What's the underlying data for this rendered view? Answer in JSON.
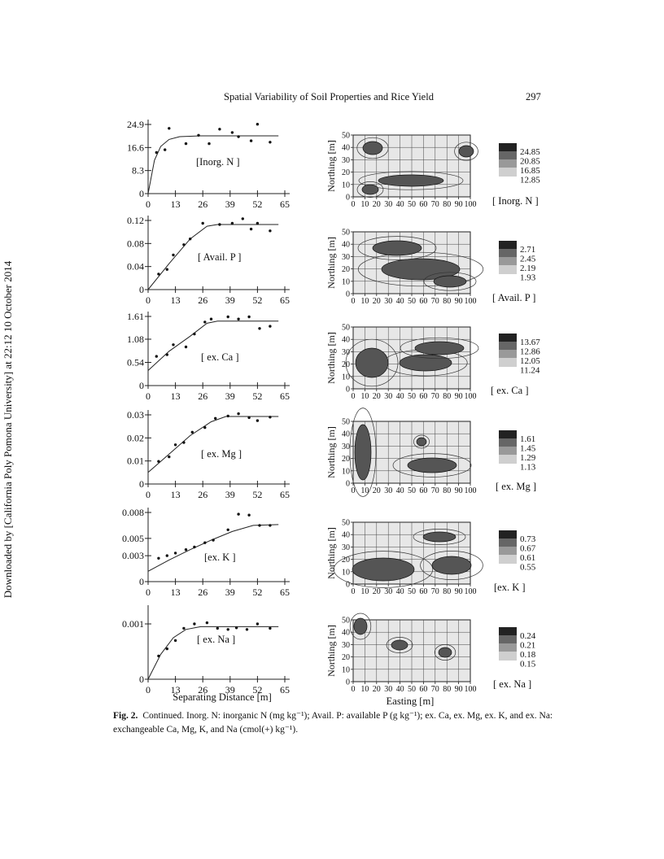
{
  "header": {
    "running_title": "Spatial Variability of Soil Properties and Rice Yield",
    "page_number": "297"
  },
  "sidebar_note": "Downloaded by [California Poly Pomona University] at 22:12 10 October 2014",
  "chart_data": [
    {
      "type": "scatter",
      "panel": "variogram",
      "label": "[Inorg. N ]",
      "xlim": [
        0,
        65
      ],
      "x_ticks": [
        "0",
        "13",
        "26",
        "39",
        "52",
        "65"
      ],
      "y_ticks": [
        "0",
        "8.3",
        "16.6",
        "24.9"
      ],
      "ylim": [
        0,
        24.9
      ],
      "points": [
        [
          4,
          14.8
        ],
        [
          8,
          15.8
        ],
        [
          10,
          23.5
        ],
        [
          18,
          18
        ],
        [
          24,
          21
        ],
        [
          29,
          18
        ],
        [
          34,
          23.2
        ],
        [
          40,
          22
        ],
        [
          43,
          20.5
        ],
        [
          49,
          19
        ],
        [
          52,
          25
        ],
        [
          58,
          18.5
        ]
      ],
      "fit": [
        [
          0,
          0
        ],
        [
          3,
          12
        ],
        [
          6,
          17
        ],
        [
          10,
          19.5
        ],
        [
          15,
          20.5
        ],
        [
          25,
          20.8
        ],
        [
          45,
          20.8
        ],
        [
          62,
          20.8
        ]
      ]
    },
    {
      "type": "scatter",
      "panel": "variogram",
      "label": "[ Avail. P ]",
      "xlim": [
        0,
        65
      ],
      "x_ticks": [
        "0",
        "13",
        "26",
        "39",
        "52",
        "65"
      ],
      "y_ticks": [
        "0",
        "0.04",
        "0.08",
        "0.12"
      ],
      "ylim": [
        0,
        0.12
      ],
      "points": [
        [
          5,
          0.027
        ],
        [
          9,
          0.035
        ],
        [
          12,
          0.06
        ],
        [
          17,
          0.078
        ],
        [
          20,
          0.088
        ],
        [
          26,
          0.115
        ],
        [
          34,
          0.113
        ],
        [
          40,
          0.115
        ],
        [
          45,
          0.123
        ],
        [
          49,
          0.105
        ],
        [
          52,
          0.115
        ],
        [
          58,
          0.102
        ]
      ],
      "fit": [
        [
          0,
          0
        ],
        [
          10,
          0.045
        ],
        [
          20,
          0.088
        ],
        [
          28,
          0.11
        ],
        [
          33,
          0.113
        ],
        [
          62,
          0.113
        ]
      ]
    },
    {
      "type": "scatter",
      "panel": "variogram",
      "label": "[ ex. Ca ]",
      "xlim": [
        0,
        65
      ],
      "x_ticks": [
        "0",
        "13",
        "26",
        "39",
        "52",
        "65"
      ],
      "y_ticks": [
        "0",
        "0.54",
        "1.08",
        "1.61"
      ],
      "ylim": [
        0,
        1.61
      ],
      "points": [
        [
          4,
          0.68
        ],
        [
          9,
          0.72
        ],
        [
          12,
          0.95
        ],
        [
          18,
          0.9
        ],
        [
          22,
          1.2
        ],
        [
          27,
          1.48
        ],
        [
          30,
          1.55
        ],
        [
          38,
          1.6
        ],
        [
          43,
          1.55
        ],
        [
          48,
          1.6
        ],
        [
          53,
          1.33
        ],
        [
          58,
          1.38
        ]
      ],
      "fit": [
        [
          0,
          0.35
        ],
        [
          10,
          0.8
        ],
        [
          20,
          1.15
        ],
        [
          28,
          1.45
        ],
        [
          33,
          1.5
        ],
        [
          62,
          1.5
        ]
      ]
    },
    {
      "type": "scatter",
      "panel": "variogram",
      "label": "[ ex. Mg ]",
      "xlim": [
        0,
        65
      ],
      "x_ticks": [
        "0",
        "13",
        "26",
        "39",
        "52",
        "65"
      ],
      "y_ticks": [
        "0",
        "0.01",
        "0.02",
        "0.03"
      ],
      "ylim": [
        0,
        0.03
      ],
      "points": [
        [
          5,
          0.0098
        ],
        [
          10,
          0.0118
        ],
        [
          13,
          0.017
        ],
        [
          17,
          0.018
        ],
        [
          21,
          0.0225
        ],
        [
          27,
          0.0245
        ],
        [
          32,
          0.0285
        ],
        [
          38,
          0.0295
        ],
        [
          43,
          0.0305
        ],
        [
          48,
          0.0288
        ],
        [
          52,
          0.0275
        ],
        [
          58,
          0.029
        ]
      ],
      "fit": [
        [
          0,
          0.005
        ],
        [
          10,
          0.013
        ],
        [
          20,
          0.021
        ],
        [
          30,
          0.027
        ],
        [
          37,
          0.0293
        ],
        [
          62,
          0.0293
        ]
      ]
    },
    {
      "type": "scatter",
      "panel": "variogram",
      "label": "[ex. K ]",
      "xlim": [
        0,
        65
      ],
      "x_ticks": [
        "0",
        "13",
        "26",
        "39",
        "52",
        "65"
      ],
      "y_ticks": [
        "0",
        "0.003",
        "0.005",
        "0.008"
      ],
      "ylim": [
        0,
        0.008
      ],
      "points": [
        [
          5,
          0.0027
        ],
        [
          9,
          0.003
        ],
        [
          13,
          0.0033
        ],
        [
          18,
          0.0037
        ],
        [
          22,
          0.004
        ],
        [
          27,
          0.0045
        ],
        [
          31,
          0.0048
        ],
        [
          38,
          0.006
        ],
        [
          43,
          0.0078
        ],
        [
          48,
          0.0077
        ],
        [
          53,
          0.0065
        ],
        [
          58,
          0.0065
        ]
      ],
      "fit": [
        [
          0,
          0.0012
        ],
        [
          10,
          0.0025
        ],
        [
          20,
          0.0037
        ],
        [
          30,
          0.0048
        ],
        [
          40,
          0.0058
        ],
        [
          50,
          0.0065
        ],
        [
          62,
          0.0066
        ]
      ]
    },
    {
      "type": "scatter",
      "panel": "variogram",
      "label": "[ ex. Na ]",
      "xlim": [
        0,
        65
      ],
      "x_ticks": [
        "0",
        "13",
        "26",
        "39",
        "52",
        "65"
      ],
      "y_ticks": [
        "0",
        "0.001"
      ],
      "ylim": [
        0,
        0.00125
      ],
      "points": [
        [
          5,
          0.00042
        ],
        [
          9,
          0.00055
        ],
        [
          13,
          0.0007
        ],
        [
          17,
          0.00092
        ],
        [
          22,
          0.001
        ],
        [
          28,
          0.00102
        ],
        [
          33,
          0.00092
        ],
        [
          38,
          0.0009
        ],
        [
          42,
          0.00093
        ],
        [
          47,
          0.0009
        ],
        [
          52,
          0.001
        ],
        [
          58,
          0.00092
        ]
      ],
      "fit": [
        [
          0,
          0
        ],
        [
          6,
          0.00045
        ],
        [
          12,
          0.00075
        ],
        [
          18,
          0.0009
        ],
        [
          25,
          0.00095
        ],
        [
          62,
          0.00095
        ]
      ]
    }
  ],
  "variogram_axis_label": "Separating Distance [m]",
  "maps": {
    "ylabel": "Northing [m]",
    "xlabel": "Easting [m]",
    "x_ticks": [
      "0",
      "10",
      "20",
      "30",
      "40",
      "50",
      "60",
      "70",
      "80",
      "90",
      "100"
    ],
    "y_ticks": [
      "0",
      "10",
      "20",
      "30",
      "40",
      "50"
    ],
    "panels": [
      {
        "label": "[ Inorg. N ]",
        "legend": [
          "24.85",
          "20.85",
          "16.85",
          "12.85"
        ]
      },
      {
        "label": "[ Avail. P ]",
        "legend": [
          "2.71",
          "2.45",
          "2.19",
          "1.93"
        ]
      },
      {
        "label": "[ ex. Ca ]",
        "legend": [
          "13.67",
          "12.86",
          "12.05",
          "11.24"
        ]
      },
      {
        "label": "[ ex. Mg ]",
        "legend": [
          "1.61",
          "1.45",
          "1.29",
          "1.13"
        ]
      },
      {
        "label": "[ex. K ]",
        "legend": [
          "0.73",
          "0.67",
          "0.61",
          "0.55"
        ]
      },
      {
        "label": "[ ex. Na ]",
        "legend": [
          "0.24",
          "0.21",
          "0.18",
          "0.15"
        ]
      }
    ]
  },
  "caption": {
    "label": "Fig. 2.",
    "text": "Continued. Inorg. N: inorganic N (mg kg⁻¹); Avail. P: available P (g kg⁻¹); ex. Ca, ex. Mg, ex. K, and ex. Na: exchangeable Ca, Mg, K, and Na (cmol(+) kg⁻¹)."
  }
}
